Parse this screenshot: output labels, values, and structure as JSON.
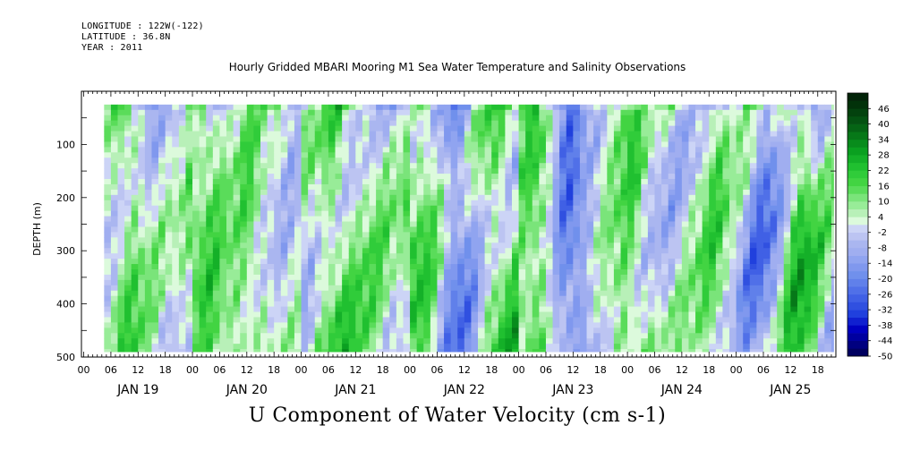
{
  "header": {
    "longitude": "LONGITUDE : 122W(-122)",
    "latitude": "LATITUDE : 36.8N",
    "year": "YEAR : 2011"
  },
  "chart_data": {
    "type": "heatmap",
    "title": "Hourly Gridded MBARI Mooring M1 Sea Water Temperature and Salinity Observations",
    "xlabel": "U Component of Water Velocity (cm s-1)",
    "ylabel": "DEPTH (m)",
    "x_axis": {
      "hour_ticks": [
        "00",
        "06",
        "12",
        "18",
        "00",
        "06",
        "12",
        "18",
        "00",
        "06",
        "12",
        "18",
        "00",
        "06",
        "12",
        "18",
        "00",
        "06",
        "12",
        "18",
        "00",
        "06",
        "12",
        "18",
        "00",
        "06",
        "12",
        "18"
      ],
      "day_labels": [
        "JAN 19",
        "JAN 20",
        "JAN 21",
        "JAN 22",
        "JAN 23",
        "JAN 24",
        "JAN 25"
      ],
      "range_hours_from_jan19_00": [
        -0.5,
        166
      ]
    },
    "y_axis": {
      "tick_labels": [
        "100",
        "200",
        "300",
        "400",
        "500"
      ],
      "range": [
        500,
        0
      ],
      "data_range": [
        25,
        490
      ]
    },
    "colorbar": {
      "labels": [
        "46",
        "40",
        "34",
        "28",
        "22",
        "16",
        "10",
        "4",
        "-2",
        "-8",
        "-14",
        "-20",
        "-26",
        "-32",
        "-38",
        "-44",
        "-50"
      ],
      "min": -50,
      "max": 52,
      "step": 3,
      "colors": [
        "#000060",
        "#000080",
        "#0000a0",
        "#0000c0",
        "#1020d0",
        "#2040dd",
        "#3050e0",
        "#4060e5",
        "#5070e8",
        "#6080ea",
        "#7090ec",
        "#8098ee",
        "#90a4f0",
        "#a0aef0",
        "#aab6f0",
        "#bcc4f2",
        "#ccd4f6",
        "#dcfadc",
        "#b8f0b8",
        "#98ec98",
        "#7ae47a",
        "#5adc5a",
        "#42d442",
        "#30cc3a",
        "#20c030",
        "#14b028",
        "#0aa020",
        "#088c1c",
        "#067818",
        "#056415",
        "#045212",
        "#03420e",
        "#02320a",
        "#022408"
      ]
    },
    "field_model": {
      "day_amplitudes": [
        9,
        -7,
        11,
        -12,
        6,
        10,
        14
      ],
      "bands": [
        {
          "t": 10,
          "a": 13
        },
        {
          "t": 27,
          "a": 15
        },
        {
          "t": 36,
          "a": 12
        },
        {
          "t": 55,
          "a": 14
        },
        {
          "t": 63,
          "a": 9
        },
        {
          "t": 75,
          "a": 16
        },
        {
          "t": 82,
          "a": -17
        },
        {
          "t": 91,
          "a": 13
        },
        {
          "t": 100,
          "a": 18
        },
        {
          "t": 107,
          "a": -19
        },
        {
          "t": 120,
          "a": 15
        },
        {
          "t": 139,
          "a": 12
        },
        {
          "t": 150,
          "a": -14
        },
        {
          "t": 158,
          "a": 19
        }
      ]
    }
  }
}
